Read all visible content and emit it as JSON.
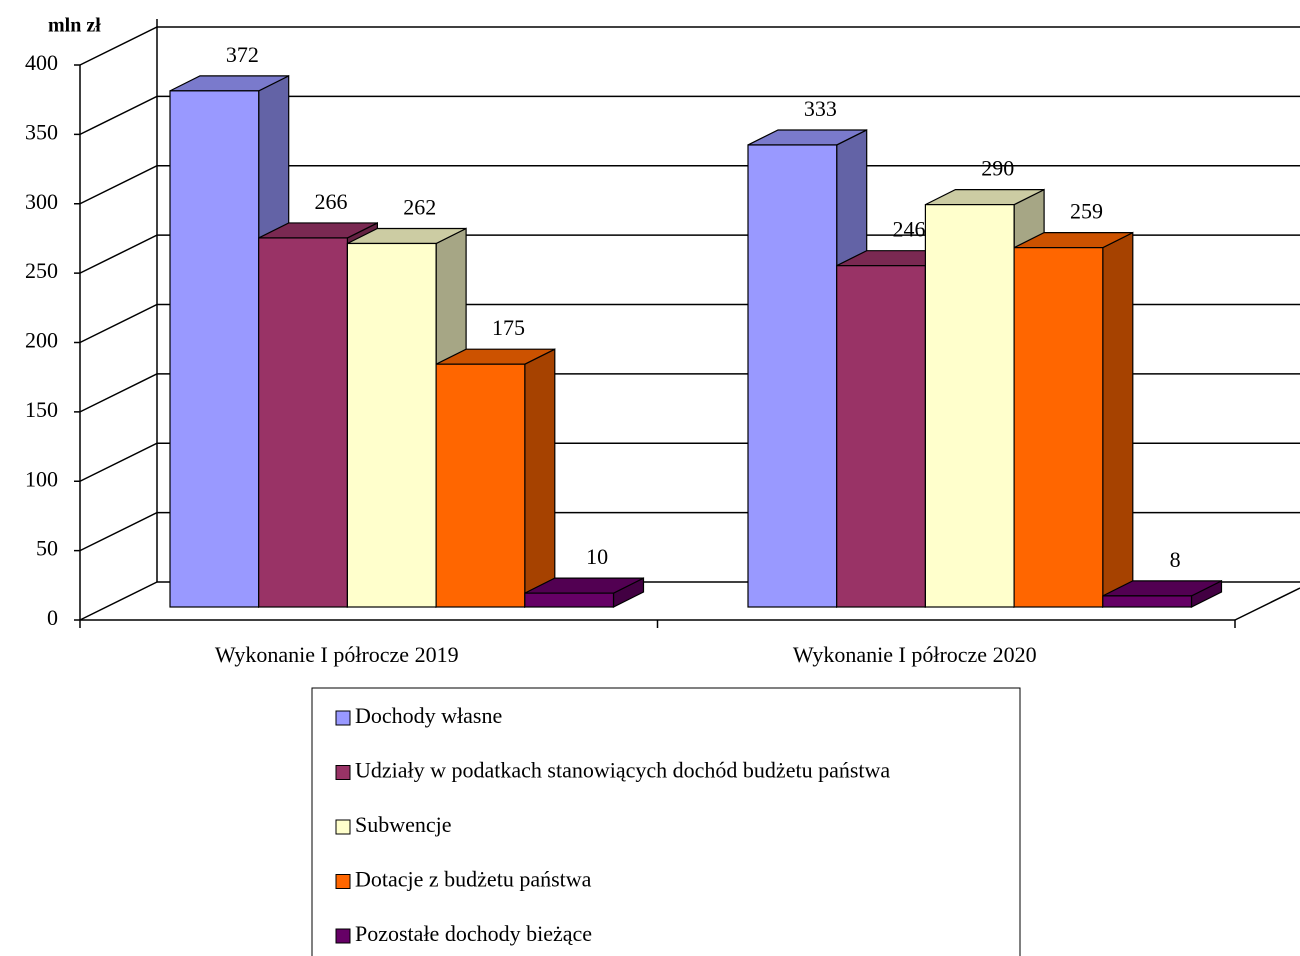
{
  "chart_data": {
    "type": "bar3d",
    "y_label": "mln zł",
    "categories": [
      "Wykonanie I półrocze 2019",
      "Wykonanie I półrocze 2020"
    ],
    "series": [
      {
        "name": "Dochody własne",
        "color": "#9999ff",
        "values": [
          372,
          333
        ]
      },
      {
        "name": "Udziały w podatkach stanowiących dochód budżetu państwa",
        "color": "#993366",
        "values": [
          266,
          246
        ]
      },
      {
        "name": "Subwencje",
        "color": "#ffffcc",
        "values": [
          262,
          290
        ]
      },
      {
        "name": "Dotacje z budżetu państwa",
        "color": "#ff6600",
        "values": [
          175,
          259
        ]
      },
      {
        "name": "Pozostałe dochody bieżące",
        "color": "#660066",
        "values": [
          10,
          8
        ]
      }
    ],
    "ylim": [
      0,
      400
    ],
    "yticks": [
      0,
      50,
      100,
      150,
      200,
      250,
      300,
      350,
      400
    ],
    "grid": true,
    "legend": "bottom"
  }
}
